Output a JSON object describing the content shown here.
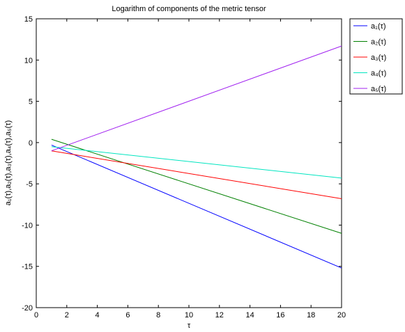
{
  "chart_data": {
    "type": "line",
    "title": "Logarithm of components of the metric tensor",
    "xlabel": "τ",
    "ylabel": "a₁(τ),a₂(τ),a₃(τ),a₄(τ),a₅(τ)",
    "xlim": [
      0,
      20
    ],
    "ylim": [
      -20,
      15
    ],
    "xticks": [
      0,
      2,
      4,
      6,
      8,
      10,
      12,
      14,
      16,
      18,
      20
    ],
    "yticks": [
      -20,
      -15,
      -10,
      -5,
      0,
      5,
      10,
      15
    ],
    "grid": false,
    "legend_position": "outside-top-right",
    "series": [
      {
        "name": "a₁(τ)",
        "color": "#0000ff",
        "x": [
          1,
          20
        ],
        "y": [
          -0.3,
          -15.2
        ]
      },
      {
        "name": "a₂(τ)",
        "color": "#008000",
        "x": [
          1,
          20
        ],
        "y": [
          0.4,
          -11.0
        ]
      },
      {
        "name": "a₃(τ)",
        "color": "#ff0000",
        "x": [
          1,
          20
        ],
        "y": [
          -1.0,
          -6.8
        ]
      },
      {
        "name": "a₄(τ)",
        "color": "#00e5c0",
        "x": [
          1,
          20
        ],
        "y": [
          -0.5,
          -4.3
        ]
      },
      {
        "name": "a₅(τ)",
        "color": "#a020f0",
        "x": [
          1,
          20
        ],
        "y": [
          -1.0,
          11.7
        ]
      }
    ]
  }
}
